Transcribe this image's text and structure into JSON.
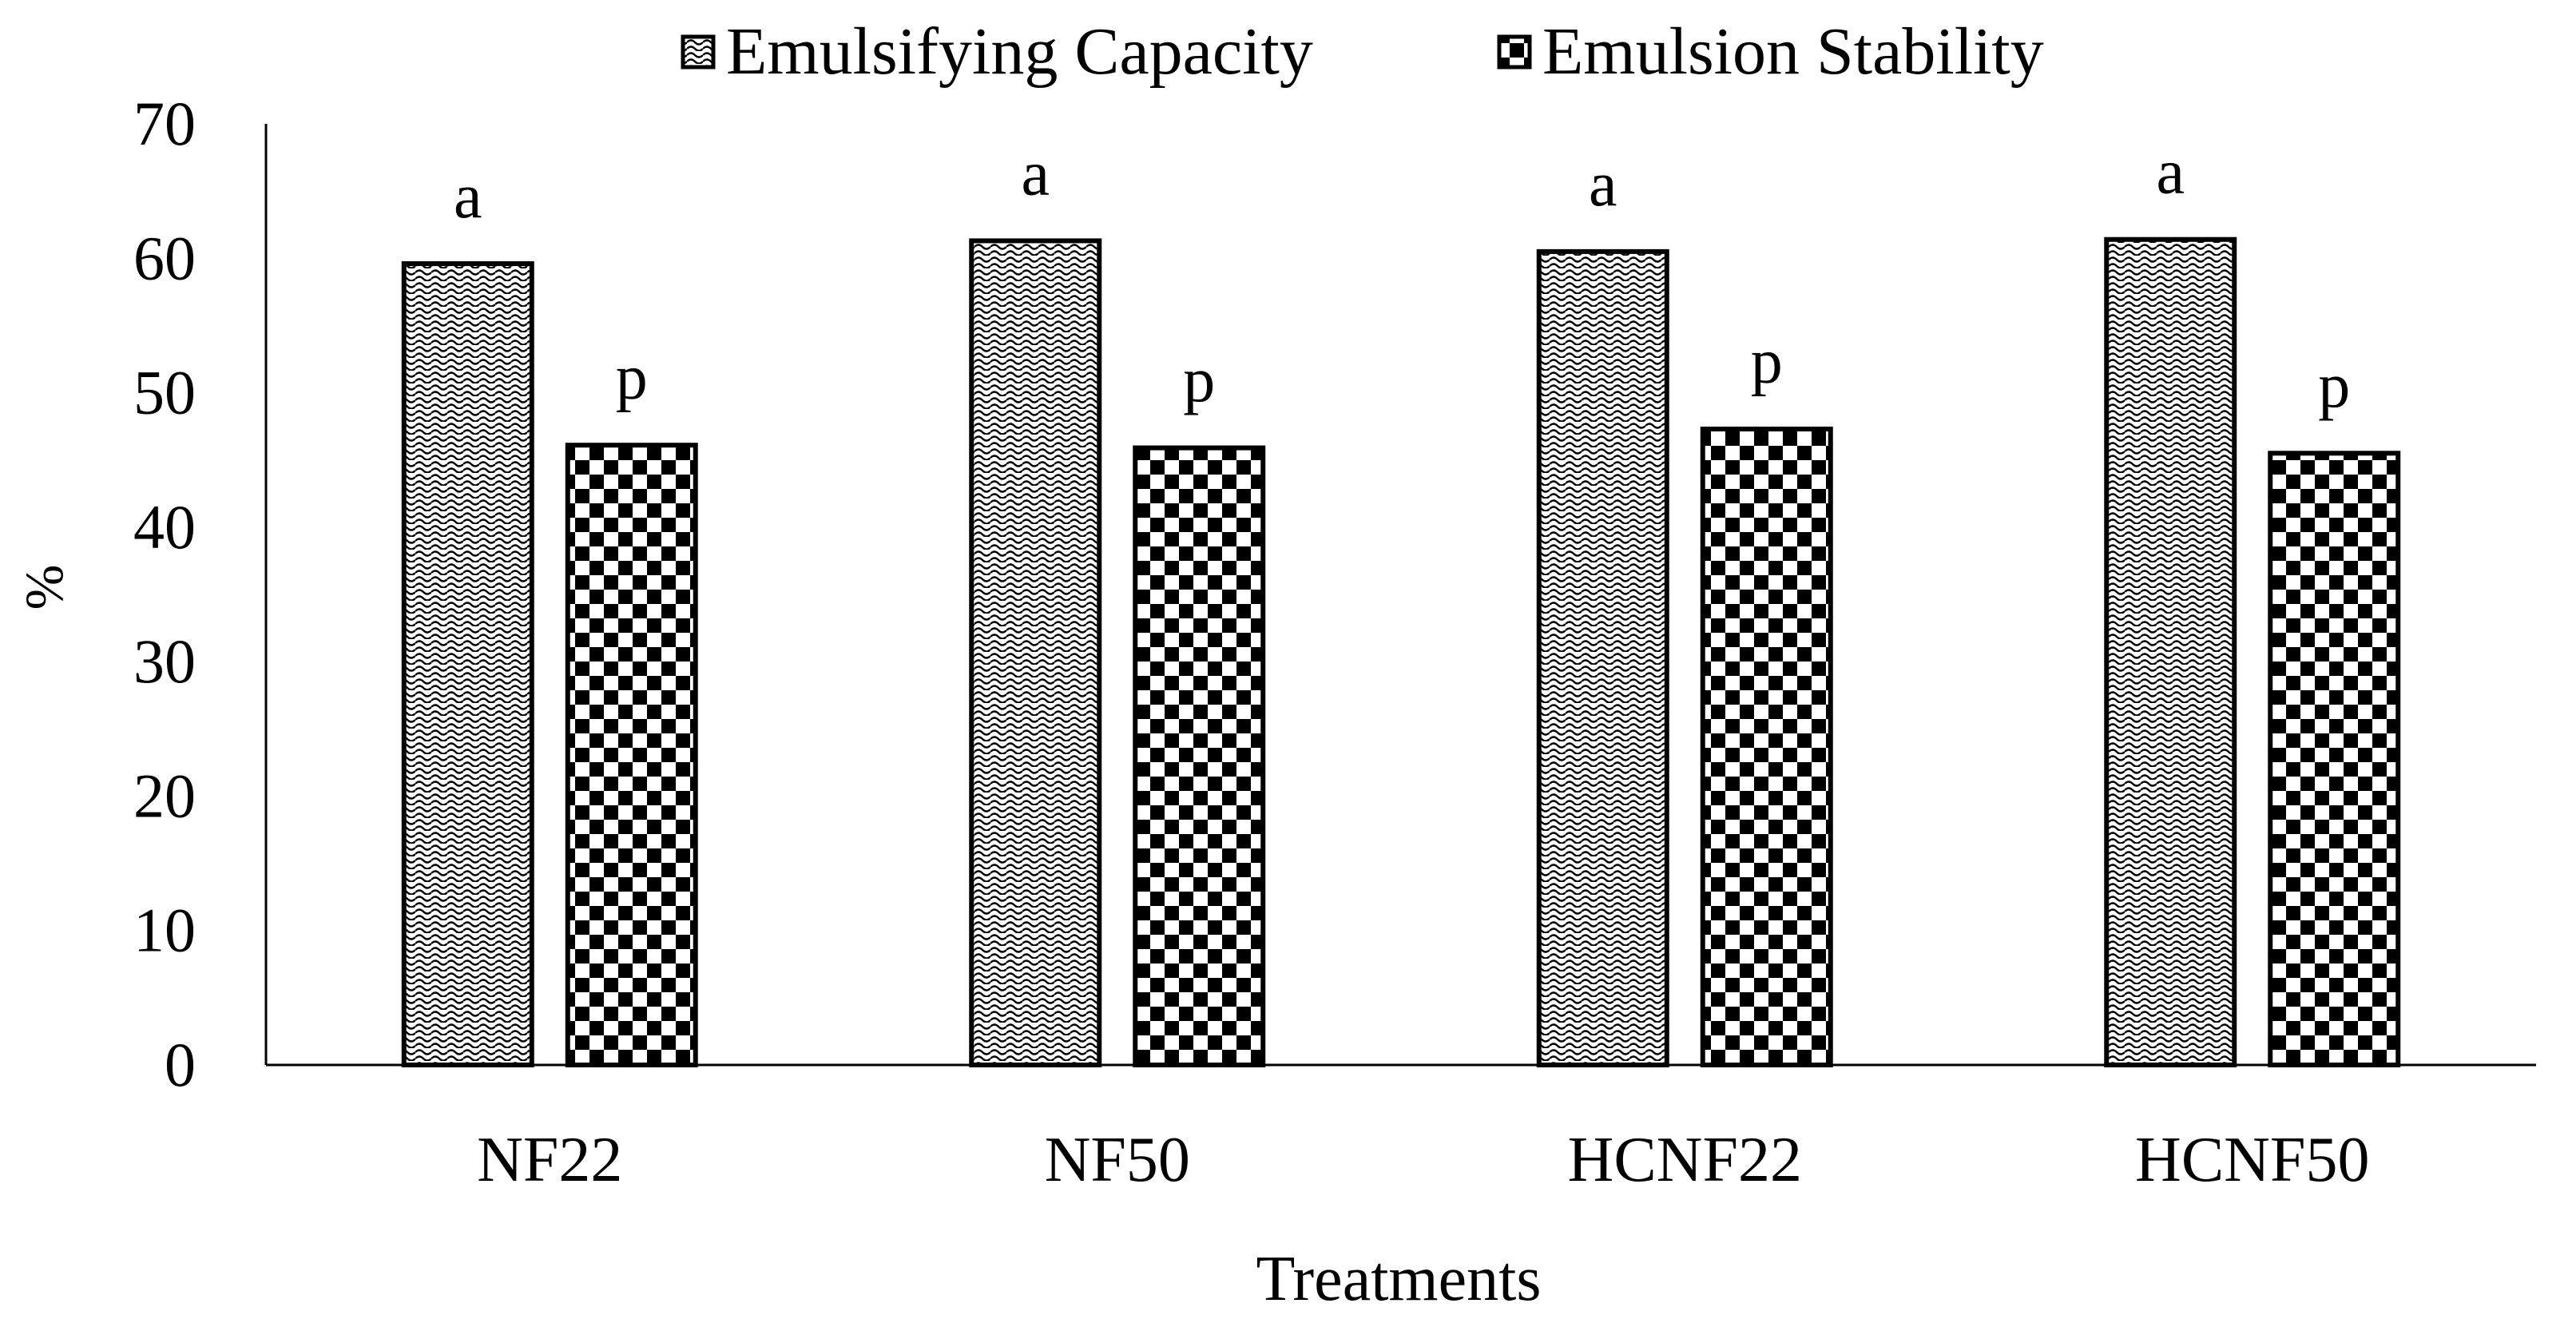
{
  "chart_data": {
    "type": "bar",
    "categories": [
      "NF22",
      "NF50",
      "HCNF22",
      "HCNF50"
    ],
    "series": [
      {
        "name": "Emulsifying Capacity",
        "values": [
          59.6,
          61.3,
          60.5,
          61.4
        ],
        "labels": [
          "a",
          "a",
          "a",
          "a"
        ],
        "pattern": "wave"
      },
      {
        "name": "Emulsion Stability",
        "values": [
          46.1,
          45.9,
          47.3,
          45.5
        ],
        "labels": [
          "p",
          "p",
          "p",
          "p"
        ],
        "pattern": "checker"
      }
    ],
    "title": "",
    "xlabel": "Treatments",
    "ylabel": "%",
    "ylim": [
      0,
      70
    ],
    "yticks": [
      0,
      10,
      20,
      30,
      40,
      50,
      60,
      70
    ],
    "legend_position": "top-center",
    "grid": false
  }
}
